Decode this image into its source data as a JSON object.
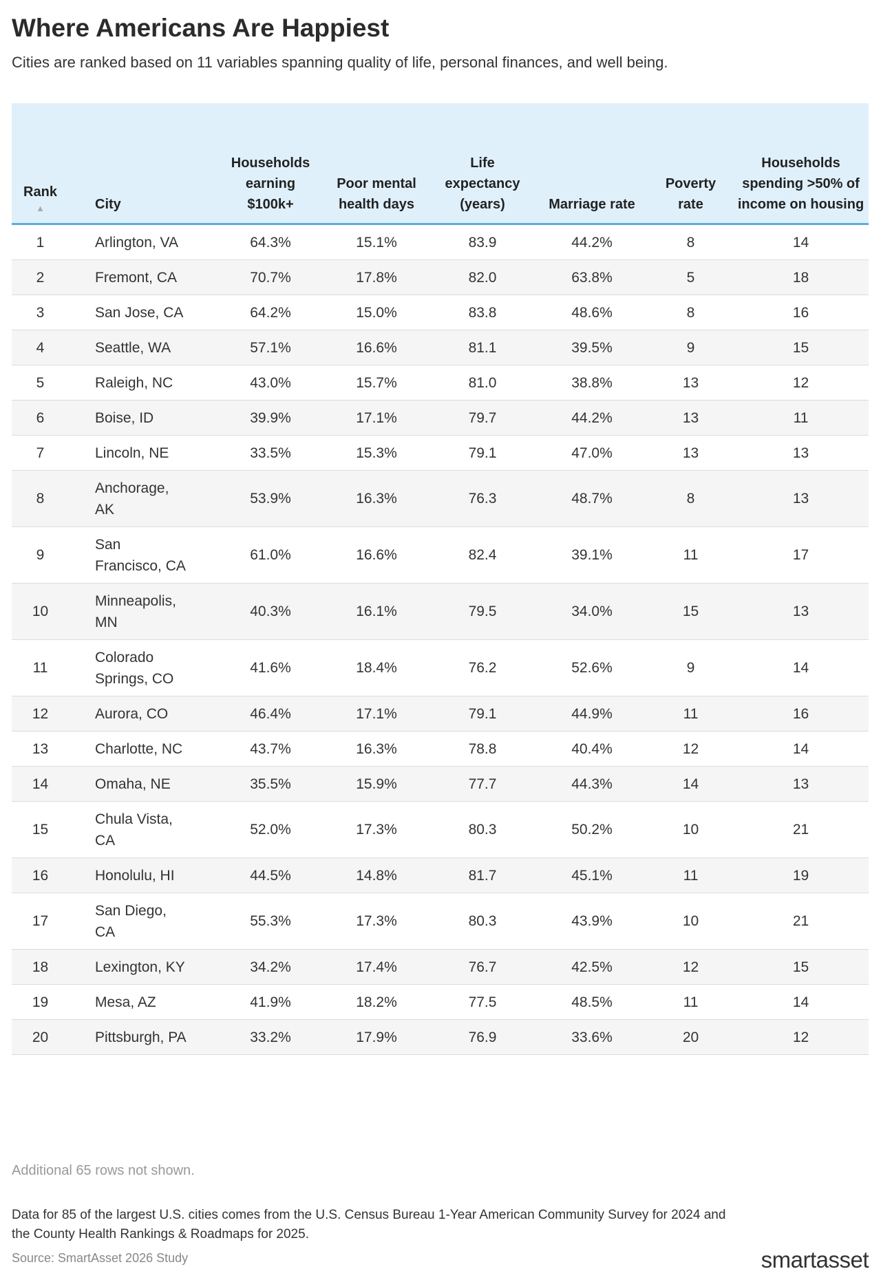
{
  "header": {
    "title": "Where Americans Are Happiest",
    "subtitle": "Cities are ranked based on 11 variables spanning quality of life, personal finances, and well being."
  },
  "table": {
    "columns": [
      "Rank",
      "City",
      "Households earning $100k+",
      "Poor mental health days",
      "Life expectancy (years)",
      "Marriage rate",
      "Poverty rate",
      "Households spending >50% of income on housing"
    ],
    "rows": [
      [
        "1",
        "Arlington, VA",
        "64.3%",
        "15.1%",
        "83.9",
        "44.2%",
        "8",
        "14"
      ],
      [
        "2",
        "Fremont, CA",
        "70.7%",
        "17.8%",
        "82.0",
        "63.8%",
        "5",
        "18"
      ],
      [
        "3",
        "San Jose, CA",
        "64.2%",
        "15.0%",
        "83.8",
        "48.6%",
        "8",
        "16"
      ],
      [
        "4",
        "Seattle, WA",
        "57.1%",
        "16.6%",
        "81.1",
        "39.5%",
        "9",
        "15"
      ],
      [
        "5",
        "Raleigh, NC",
        "43.0%",
        "15.7%",
        "81.0",
        "38.8%",
        "13",
        "12"
      ],
      [
        "6",
        "Boise, ID",
        "39.9%",
        "17.1%",
        "79.7",
        "44.2%",
        "13",
        "11"
      ],
      [
        "7",
        "Lincoln, NE",
        "33.5%",
        "15.3%",
        "79.1",
        "47.0%",
        "13",
        "13"
      ],
      [
        "8",
        "Anchorage, AK",
        "53.9%",
        "16.3%",
        "76.3",
        "48.7%",
        "8",
        "13"
      ],
      [
        "9",
        "San Francisco, CA",
        "61.0%",
        "16.6%",
        "82.4",
        "39.1%",
        "11",
        "17"
      ],
      [
        "10",
        "Minneapolis, MN",
        "40.3%",
        "16.1%",
        "79.5",
        "34.0%",
        "15",
        "13"
      ],
      [
        "11",
        "Colorado Springs, CO",
        "41.6%",
        "18.4%",
        "76.2",
        "52.6%",
        "9",
        "14"
      ],
      [
        "12",
        "Aurora, CO",
        "46.4%",
        "17.1%",
        "79.1",
        "44.9%",
        "11",
        "16"
      ],
      [
        "13",
        "Charlotte, NC",
        "43.7%",
        "16.3%",
        "78.8",
        "40.4%",
        "12",
        "14"
      ],
      [
        "14",
        "Omaha, NE",
        "35.5%",
        "15.9%",
        "77.7",
        "44.3%",
        "14",
        "13"
      ],
      [
        "15",
        "Chula Vista, CA",
        "52.0%",
        "17.3%",
        "80.3",
        "50.2%",
        "10",
        "21"
      ],
      [
        "16",
        "Honolulu, HI",
        "44.5%",
        "14.8%",
        "81.7",
        "45.1%",
        "11",
        "19"
      ],
      [
        "17",
        "San Diego, CA",
        "55.3%",
        "17.3%",
        "80.3",
        "43.9%",
        "10",
        "21"
      ],
      [
        "18",
        "Lexington, KY",
        "34.2%",
        "17.4%",
        "76.7",
        "42.5%",
        "12",
        "15"
      ],
      [
        "19",
        "Mesa, AZ",
        "41.9%",
        "18.2%",
        "77.5",
        "48.5%",
        "11",
        "14"
      ],
      [
        "20",
        "Pittsburgh, PA",
        "33.2%",
        "17.9%",
        "76.9",
        "33.6%",
        "20",
        "12"
      ]
    ]
  },
  "footer": {
    "more_rows": "Additional 65 rows not shown.",
    "note": "Data for 85 of the largest U.S. cities comes from the U.S. Census Bureau 1-Year American Community Survey for 2024 and the County Health Rankings & Roadmaps for 2025.",
    "source": "Source: SmartAsset 2026 Study",
    "logo": "smartasset"
  }
}
